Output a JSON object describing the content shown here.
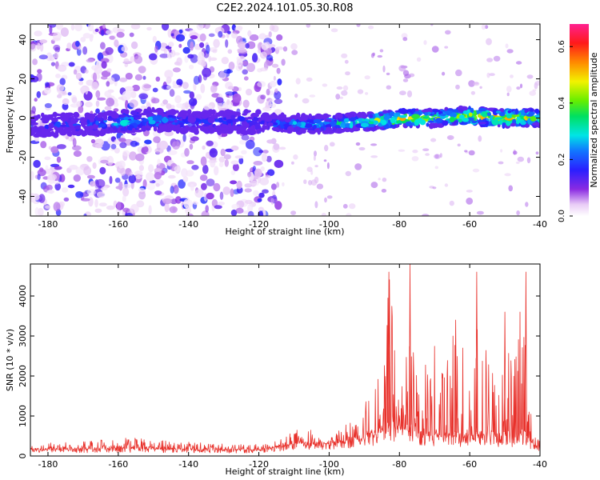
{
  "title": "C2E2.2024.101.05.30.R08",
  "colors": {
    "signal_line": "#e8312b",
    "axis": "#000000",
    "background": "#ffffff"
  },
  "chart_data": [
    {
      "type": "heatmap",
      "xlabel": "Height of straight line (km)",
      "ylabel": "Frequency (Hz)",
      "xlim": [
        -185,
        -40
      ],
      "ylim": [
        -50,
        48
      ],
      "x_ticks": [
        -180,
        -160,
        -140,
        -120,
        -100,
        -80,
        -60,
        -40
      ],
      "y_ticks": [
        -40,
        -20,
        0,
        20,
        40
      ],
      "colorbar": {
        "label": "Normalized spectral amplitude",
        "range": [
          0,
          0.68
        ],
        "ticks": [
          0.0,
          0.2,
          0.4,
          0.6
        ],
        "colormap": "rainbow (white-purple-blue-cyan-green-yellow-red-magenta)"
      },
      "band": {
        "center_frequency": [
          [
            -185,
            -4
          ],
          [
            -170,
            -3
          ],
          [
            -160,
            -2
          ],
          [
            -150,
            -1
          ],
          [
            -140,
            -2
          ],
          [
            -130,
            -2
          ],
          [
            -120,
            -2
          ],
          [
            -110,
            -3
          ],
          [
            -100,
            -3
          ],
          [
            -90,
            -2
          ],
          [
            -80,
            0
          ],
          [
            -70,
            0
          ],
          [
            -60,
            1
          ],
          [
            -50,
            0
          ],
          [
            -40,
            0
          ]
        ],
        "peak_amplitude": [
          [
            -185,
            0.18
          ],
          [
            -170,
            0.2
          ],
          [
            -160,
            0.3
          ],
          [
            -150,
            0.28
          ],
          [
            -140,
            0.2
          ],
          [
            -130,
            0.2
          ],
          [
            -120,
            0.2
          ],
          [
            -110,
            0.28
          ],
          [
            -100,
            0.32
          ],
          [
            -90,
            0.38
          ],
          [
            -80,
            0.55
          ],
          [
            -70,
            0.45
          ],
          [
            -60,
            0.5
          ],
          [
            -50,
            0.55
          ],
          [
            -40,
            0.45
          ]
        ]
      },
      "noise_cloud_x_range": [
        -185,
        -118
      ]
    },
    {
      "type": "line",
      "xlabel": "Height of straight line (km)",
      "ylabel": "SNR (10 * v/v)",
      "xlim": [
        -185,
        -40
      ],
      "ylim": [
        0,
        4800
      ],
      "x_ticks": [
        -180,
        -160,
        -140,
        -120,
        -100,
        -80,
        -60,
        -40
      ],
      "y_ticks": [
        0,
        1000,
        2000,
        3000,
        4000
      ],
      "series": [
        {
          "envelope_x": [
            -185,
            -175,
            -165,
            -160,
            -150,
            -140,
            -130,
            -120,
            -115,
            -110,
            -106,
            -100,
            -96,
            -92,
            -88,
            -85,
            -83,
            -80,
            -78,
            -77,
            -75,
            -72,
            -70,
            -67,
            -65,
            -63,
            -60,
            -58,
            -56,
            -54,
            -52,
            -50,
            -48,
            -46,
            -44,
            -43,
            -42,
            -40
          ],
          "envelope_max": [
            300,
            350,
            400,
            500,
            420,
            350,
            300,
            300,
            400,
            650,
            700,
            450,
            900,
            1000,
            1600,
            2400,
            4600,
            2200,
            2600,
            4800,
            3000,
            2400,
            2800,
            2200,
            3400,
            2600,
            3500,
            4600,
            2600,
            3000,
            2400,
            3600,
            2500,
            3800,
            4600,
            1800,
            500,
            400
          ],
          "baseline": [
            150,
            160,
            170,
            180,
            170,
            160,
            150,
            150,
            220,
            300,
            320,
            300,
            350,
            400,
            500,
            600,
            700,
            650,
            600,
            650,
            550,
            500,
            500,
            450,
            500,
            450,
            500,
            550,
            450,
            500,
            450,
            500,
            450,
            500,
            550,
            300,
            250,
            200
          ]
        }
      ]
    }
  ]
}
